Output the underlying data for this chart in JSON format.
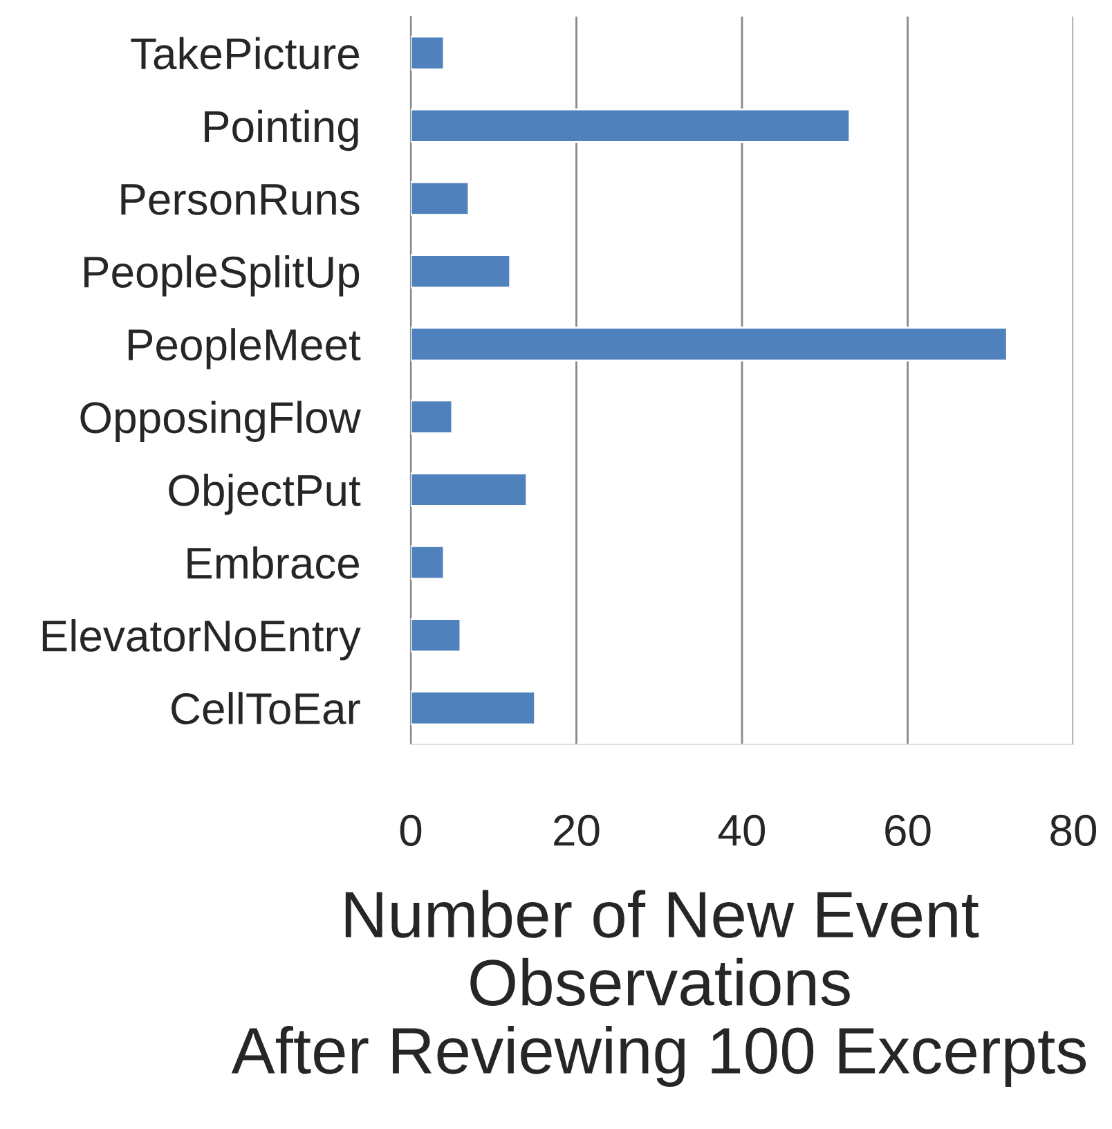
{
  "chart_data": {
    "type": "bar",
    "orientation": "horizontal",
    "xlabel": "Number of New Event\nObservations\nAfter Reviewing 100 Excerpts",
    "categories": [
      "TakePicture",
      "Pointing",
      "PersonRuns",
      "PeopleSplitUp",
      "PeopleMeet",
      "OpposingFlow",
      "ObjectPut",
      "Embrace",
      "ElevatorNoEntry",
      "CellToEar"
    ],
    "values": [
      4,
      53,
      7,
      12,
      72,
      5,
      14,
      4,
      6,
      15
    ],
    "color": "#4f81bd",
    "xlim": [
      0,
      80
    ],
    "xticks": [
      0,
      20,
      40,
      60,
      80
    ],
    "grid": "x",
    "legend": false
  }
}
